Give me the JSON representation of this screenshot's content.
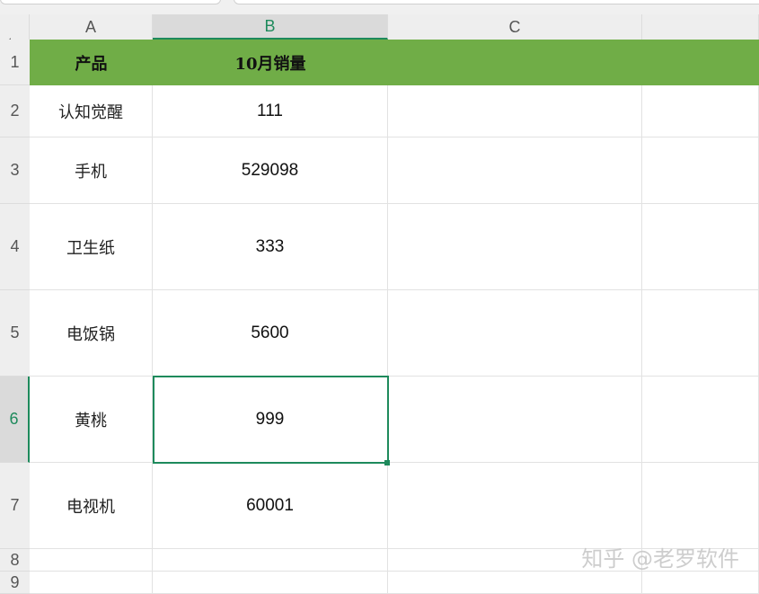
{
  "columns": [
    "A",
    "B",
    "C"
  ],
  "rows": [
    "1",
    "2",
    "3",
    "4",
    "5",
    "6",
    "7",
    "8",
    "9"
  ],
  "header": {
    "product": "产品",
    "sales": "10月销量"
  },
  "data": [
    {
      "product": "认知觉醒",
      "sales": "111"
    },
    {
      "product": "手机",
      "sales": "529098"
    },
    {
      "product": "卫生纸",
      "sales": "333"
    },
    {
      "product": "电饭锅",
      "sales": "5600"
    },
    {
      "product": "黄桃",
      "sales": "999"
    },
    {
      "product": "电视机",
      "sales": "60001"
    }
  ],
  "selected_cell": "B6",
  "watermark": "知乎 @老罗软件",
  "colors": {
    "header_fill": "#70ad47",
    "selection": "#1e8a5c"
  }
}
